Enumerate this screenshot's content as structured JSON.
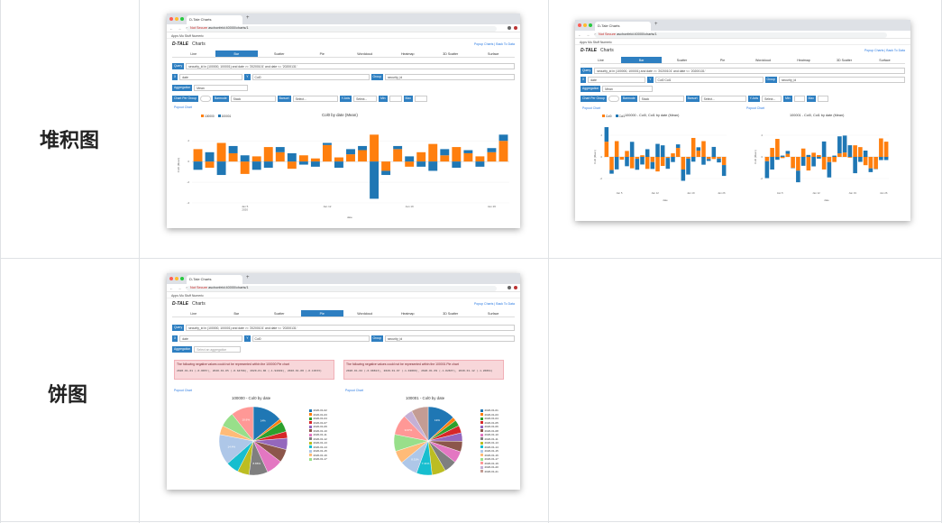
{
  "labels": {
    "stacked": "堆积图",
    "pie": "饼图"
  },
  "browser": {
    "tab_title": "D-Tale Charts",
    "new_tab": "+",
    "not_secure": "Not Secure",
    "url": "aschonfeld:40000/charts/1",
    "bookmarks": "Apps   Mu Stuff   Numeric"
  },
  "app": {
    "logo": "D-TALE",
    "title": "Charts",
    "popup_link": "Popup Charts",
    "back_link": "Back To Data",
    "tabs": [
      "Line",
      "Bar",
      "Scatter",
      "Pie",
      "Wordcloud",
      "Heatmap",
      "3D Scatter",
      "Surface"
    ],
    "query_label": "Query",
    "query_value": "security_id in (100000, 100001) and date >= '20200101' and date <= '20200131'",
    "x_label": "X",
    "x_value": "date",
    "y_label": "Y",
    "y_value": "Col0",
    "y_value2": "Col0  Col1",
    "group_label": "Group",
    "group_value": "security_id",
    "agg_label": "Aggregation",
    "agg_value": "Mean",
    "agg_placeholder": "Select an aggregation",
    "chart_per_group": "Chart Per Group",
    "barmode_label": "Barmode",
    "barmode_value": "Stack",
    "barsort_label": "Barsort",
    "barsort_value": "Select...",
    "ytype_label": "Y-Axis",
    "ytype_value": "Select...",
    "min_label": "Min",
    "max_label": "Max",
    "popout": "Popout Chart"
  },
  "bar_chart": {
    "title": "Col0 by date (Mean)",
    "legend": [
      "100000",
      "100001"
    ],
    "xlabel": "date",
    "ylabel": "Col0 (Mean)",
    "ticks": [
      "Jan 5\n2020",
      "Jan 12",
      "Jan 19",
      "Jan 26"
    ],
    "colors": {
      "a": "#ff7f0e",
      "b": "#1f77b4"
    }
  },
  "bar_split": {
    "left_title": "100000 - Col0, Col1 by date (Mean)",
    "right_title": "100001 - Col0, Col1 by date (Mean)",
    "legend": [
      "Col0",
      "Col1"
    ]
  },
  "pie": {
    "error_text": "The following negative values could not be represented within the 100000 Pie chart",
    "error_text2": "The following negative values could not be represented within the 100001 Pie chart",
    "error_detail": "2020-01-01 (-0.8857), 2020-01-05 (-0.64796), 2020-01-06 (-1.94949), 2020-01-08 (-0.10333)",
    "error_detail2": "2020-01-02 (-0.98813), 2020-01-07 (-1.02809), 2020-01-09 (-1.02837), 2020-01-12 (-1.20891)",
    "left_title": "100000 - Col0 by date",
    "right_title": "100001 - Col0 by date",
    "left_legend": [
      "2020-01-02",
      "2020-01-03",
      "2020-01-04",
      "2020-01-07",
      "2020-01-09",
      "2020-01-10",
      "2020-01-11",
      "2020-01-12",
      "2020-01-13",
      "2020-01-14",
      "2020-01-15",
      "2020-01-16",
      "2020-01-17",
      "2020-01-18"
    ],
    "right_legend": [
      "2020-01-01",
      "2020-01-03",
      "2020-01-04",
      "2020-01-05",
      "2020-01-06",
      "2020-01-08",
      "2020-01-10",
      "2020-01-11",
      "2020-01-13",
      "2020-01-14",
      "2020-01-15",
      "2020-01-16",
      "2020-01-17",
      "2020-01-19",
      "2020-01-20",
      "2020-01-21"
    ],
    "left_pcts": [
      "14%",
      "1.55%",
      "4.89%",
      "3.18%",
      "5.4%",
      "7.75%",
      "8.86%",
      "14.4%",
      "10.6%"
    ],
    "right_pcts": [
      "13%",
      "1.8%",
      "2.85%",
      "8.03%",
      "9.67%",
      "7.41%",
      "8.51%"
    ]
  }
}
